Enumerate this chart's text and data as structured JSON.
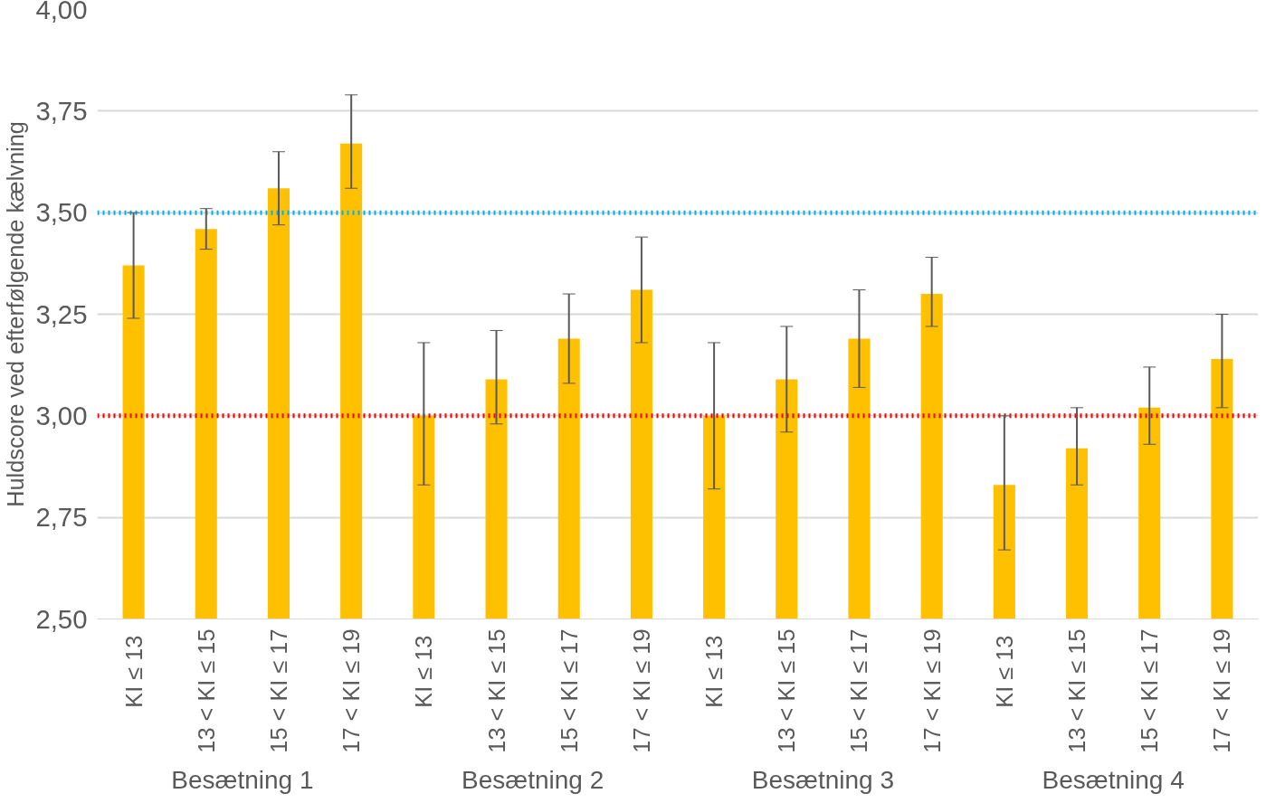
{
  "chart_data": {
    "type": "bar",
    "ylabel": "Huldscore ved efterfølgende kælvning",
    "categories": [
      "KI  ≤ 13",
      "13 < KI ≤ 15",
      "15 < KI ≤ 17",
      "17 < KI ≤ 19",
      "KI  ≤ 13",
      "13 < KI ≤ 15",
      "15 < KI ≤ 17",
      "17 < KI ≤ 19",
      "KI  ≤ 13",
      "13 < KI ≤ 15",
      "15 < KI ≤ 17",
      "17 < KI ≤ 19",
      "KI  ≤ 13",
      "13 < KI ≤ 15",
      "15 < KI ≤ 17",
      "17 < KI ≤ 19"
    ],
    "values": [
      3.37,
      3.46,
      3.56,
      3.67,
      3.0,
      3.09,
      3.19,
      3.31,
      3.0,
      3.09,
      3.19,
      3.3,
      2.83,
      2.92,
      3.02,
      3.14
    ],
    "errors": [
      [
        3.24,
        3.5
      ],
      [
        3.41,
        3.51
      ],
      [
        3.47,
        3.65
      ],
      [
        3.56,
        3.79
      ],
      [
        2.83,
        3.18
      ],
      [
        2.98,
        3.21
      ],
      [
        3.08,
        3.3
      ],
      [
        3.18,
        3.44
      ],
      [
        2.82,
        3.18
      ],
      [
        2.96,
        3.22
      ],
      [
        3.07,
        3.31
      ],
      [
        3.22,
        3.39
      ],
      [
        2.67,
        3.0
      ],
      [
        2.83,
        3.02
      ],
      [
        2.93,
        3.12
      ],
      [
        3.02,
        3.25
      ]
    ],
    "color": "#ffc000",
    "ylim": [
      2.5,
      4.0
    ],
    "yticks": [
      {
        "value": 2.5,
        "label": "2,50"
      },
      {
        "value": 2.75,
        "label": "2,75"
      },
      {
        "value": 3.0,
        "label": "3,00"
      },
      {
        "value": 3.25,
        "label": "3,25"
      },
      {
        "value": 3.5,
        "label": "3,50"
      },
      {
        "value": 3.75,
        "label": "3,75"
      },
      {
        "value": 4.0,
        "label": "4,00"
      }
    ],
    "grid": "y",
    "ref_lines": [
      {
        "axis": "y",
        "value": 3.5,
        "color": "#00b0f0",
        "line_style": "dotted"
      },
      {
        "axis": "y",
        "value": 3.0,
        "color": "#ff0000",
        "line_style": "dotted"
      }
    ],
    "annotations": [
      "Besætning 1",
      "Besætning 2",
      "Besætning 3",
      "Besætning 4"
    ]
  }
}
